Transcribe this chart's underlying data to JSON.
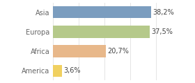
{
  "categories": [
    "America",
    "Africa",
    "Europa",
    "Asia"
  ],
  "values": [
    3.6,
    20.7,
    37.5,
    38.2
  ],
  "bar_colors": [
    "#f0d060",
    "#e8b88a",
    "#b5c98a",
    "#7b9dbf"
  ],
  "labels": [
    "3,6%",
    "20,7%",
    "37,5%",
    "38,2%"
  ],
  "xlim": [
    0,
    46
  ],
  "background_color": "#ffffff",
  "bar_height": 0.62,
  "label_fontsize": 7.0,
  "tick_fontsize": 7.0,
  "grid_color": "#e0e0e0",
  "grid_ticks": [
    0,
    10,
    20,
    30,
    40
  ]
}
